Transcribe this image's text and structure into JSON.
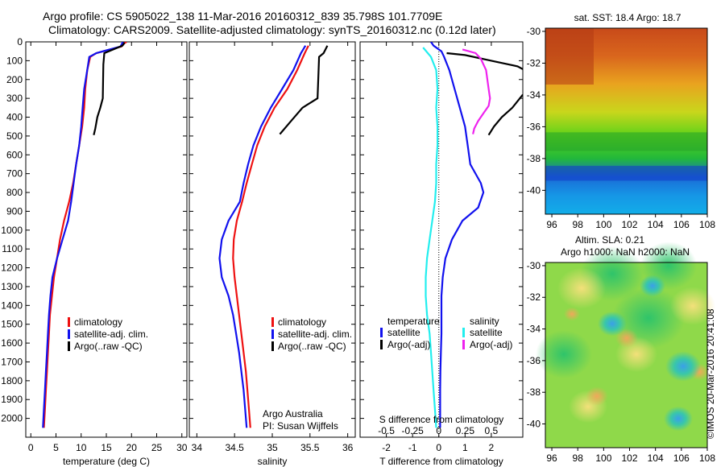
{
  "titles": {
    "line1": "Argo profile: CS 5905022_138 11-Mar-2016 20160312_839 35.798S 101.7709E",
    "line2": "Climatology: CARS2009. Satellite-adjusted climatology: synTS_20160312.nc (0.12d later)"
  },
  "credit": "©IMOS 20-Mar-2016 20:41:08",
  "colors": {
    "climatology": "#ee1111",
    "satellite": "#1111ee",
    "argo": "#000000",
    "s_satellite": "#22eeee",
    "s_argo": "#ee22ee"
  },
  "chart_data": [
    {
      "type": "line",
      "id": "temperature",
      "xlabel": "temperature (deg C)",
      "ylabel": "",
      "xlim": [
        -1,
        31
      ],
      "ylim": [
        2100,
        0
      ],
      "xticks": [
        "0",
        "5",
        "10",
        "15",
        "20",
        "25",
        "30"
      ],
      "yticks": [
        "0",
        "100",
        "200",
        "300",
        "400",
        "500",
        "600",
        "700",
        "800",
        "900",
        "1000",
        "1100",
        "1200",
        "1300",
        "1400",
        "1500",
        "1600",
        "1700",
        "1800",
        "1900",
        "2000"
      ],
      "legend": [
        "climatology",
        "satellite-adj. clim.",
        "Argo(..raw -QC)"
      ],
      "series": [
        {
          "name": "climatology",
          "color": "#ee1111",
          "points": [
            [
              19,
              0
            ],
            [
              18.5,
              10
            ],
            [
              18,
              25
            ],
            [
              13,
              60
            ],
            [
              11.8,
              80
            ],
            [
              11.2,
              150
            ],
            [
              10.8,
              250
            ],
            [
              10.6,
              350
            ],
            [
              10.2,
              450
            ],
            [
              9.6,
              550
            ],
            [
              9,
              650
            ],
            [
              8.4,
              750
            ],
            [
              7.6,
              850
            ],
            [
              6.6,
              950
            ],
            [
              5.8,
              1050
            ],
            [
              5.2,
              1150
            ],
            [
              4.6,
              1250
            ],
            [
              4.2,
              1350
            ],
            [
              3.8,
              1450
            ],
            [
              3.6,
              1550
            ],
            [
              3.4,
              1650
            ],
            [
              3.2,
              1750
            ],
            [
              3,
              1850
            ],
            [
              2.8,
              1950
            ],
            [
              2.6,
              2050
            ]
          ]
        },
        {
          "name": "satellite-adj. clim.",
          "color": "#1111ee",
          "points": [
            [
              18.3,
              0
            ],
            [
              18.1,
              10
            ],
            [
              17.8,
              25
            ],
            [
              13,
              60
            ],
            [
              11.6,
              80
            ],
            [
              11.2,
              150
            ],
            [
              10.6,
              250
            ],
            [
              10.3,
              350
            ],
            [
              10,
              450
            ],
            [
              9.6,
              550
            ],
            [
              9,
              650
            ],
            [
              8.5,
              750
            ],
            [
              8,
              850
            ],
            [
              7.4,
              950
            ],
            [
              6.3,
              1050
            ],
            [
              5.2,
              1150
            ],
            [
              4.3,
              1250
            ],
            [
              3.9,
              1350
            ],
            [
              3.6,
              1450
            ],
            [
              3.4,
              1550
            ],
            [
              3.2,
              1650
            ],
            [
              3,
              1750
            ],
            [
              2.8,
              1850
            ],
            [
              2.6,
              1950
            ],
            [
              2.4,
              2050
            ]
          ]
        },
        {
          "name": "Argo(..raw -QC)",
          "color": "#000000",
          "points": [
            [
              18.6,
              5
            ],
            [
              18.2,
              20
            ],
            [
              14.6,
              60
            ],
            [
              14.4,
              120
            ],
            [
              14.3,
              300
            ],
            [
              13.8,
              350
            ],
            [
              13.2,
              400
            ],
            [
              12.8,
              460
            ],
            [
              12.5,
              495
            ]
          ]
        }
      ]
    },
    {
      "type": "line",
      "id": "salinity",
      "xlabel": "salinity",
      "ylabel": "",
      "xlim": [
        33.9,
        36.1
      ],
      "ylim": [
        2100,
        0
      ],
      "xticks": [
        "34",
        "34.5",
        "35",
        "35.5",
        "36"
      ],
      "legend": [
        "climatology",
        "satellite-adj. clim.",
        "Argo(..raw -QC)"
      ],
      "annotation": [
        "Argo Australia",
        "PI: Susan Wijffels"
      ],
      "series": [
        {
          "name": "climatology",
          "color": "#ee1111",
          "points": [
            [
              35.48,
              20
            ],
            [
              35.43,
              60
            ],
            [
              35.33,
              150
            ],
            [
              35.2,
              250
            ],
            [
              35.03,
              350
            ],
            [
              34.9,
              450
            ],
            [
              34.8,
              550
            ],
            [
              34.73,
              650
            ],
            [
              34.66,
              750
            ],
            [
              34.6,
              850
            ],
            [
              34.53,
              950
            ],
            [
              34.49,
              1050
            ],
            [
              34.48,
              1150
            ],
            [
              34.5,
              1250
            ],
            [
              34.53,
              1350
            ],
            [
              34.56,
              1450
            ],
            [
              34.59,
              1550
            ],
            [
              34.62,
              1650
            ],
            [
              34.65,
              1750
            ],
            [
              34.67,
              1850
            ],
            [
              34.69,
              1950
            ],
            [
              34.71,
              2050
            ]
          ]
        },
        {
          "name": "satellite-adj. clim.",
          "color": "#1111ee",
          "points": [
            [
              35.44,
              20
            ],
            [
              35.38,
              60
            ],
            [
              35.28,
              150
            ],
            [
              35.13,
              250
            ],
            [
              34.98,
              350
            ],
            [
              34.85,
              450
            ],
            [
              34.75,
              550
            ],
            [
              34.68,
              650
            ],
            [
              34.62,
              750
            ],
            [
              34.57,
              850
            ],
            [
              34.42,
              950
            ],
            [
              34.33,
              1050
            ],
            [
              34.3,
              1150
            ],
            [
              34.33,
              1250
            ],
            [
              34.42,
              1350
            ],
            [
              34.48,
              1450
            ],
            [
              34.52,
              1550
            ],
            [
              34.56,
              1650
            ],
            [
              34.59,
              1750
            ],
            [
              34.62,
              1850
            ],
            [
              34.64,
              1950
            ],
            [
              34.66,
              2050
            ]
          ]
        },
        {
          "name": "Argo(..raw -QC)",
          "color": "#000000",
          "points": [
            [
              35.73,
              20
            ],
            [
              35.68,
              60
            ],
            [
              35.62,
              80
            ],
            [
              35.6,
              300
            ],
            [
              35.4,
              350
            ],
            [
              35.25,
              420
            ],
            [
              35.1,
              490
            ]
          ]
        }
      ]
    },
    {
      "type": "line",
      "id": "difference",
      "xlabel": "T difference from climatology",
      "xlabel2": "S difference from climatology",
      "ylabel": "",
      "xlim": [
        -3,
        3.2
      ],
      "ylim": [
        2100,
        0
      ],
      "xticks": [
        "-2",
        "-1",
        "0",
        "1",
        "2"
      ],
      "xticks2": [
        "-0.5",
        "-0.25",
        "0",
        "0.25",
        "0.5"
      ],
      "legend_headers": [
        "temperature",
        "salinity"
      ],
      "legend": [
        "satellite",
        "Argo(-adj)",
        "satellite",
        "Argo(-adj)"
      ],
      "series": [
        {
          "name": "satellite",
          "color": "#1111ee",
          "points": [
            [
              -0.3,
              0
            ],
            [
              -0.2,
              20
            ],
            [
              0.1,
              50
            ],
            [
              0.2,
              80
            ],
            [
              0.4,
              150
            ],
            [
              0.6,
              250
            ],
            [
              0.8,
              350
            ],
            [
              1,
              450
            ],
            [
              1.1,
              550
            ],
            [
              1.2,
              650
            ],
            [
              1.6,
              750
            ],
            [
              1.7,
              800
            ],
            [
              1.5,
              880
            ],
            [
              0.9,
              950
            ],
            [
              0.5,
              1050
            ],
            [
              0.25,
              1150
            ],
            [
              0.15,
              1250
            ],
            [
              0.1,
              1350
            ],
            [
              0.1,
              1450
            ],
            [
              0.1,
              1550
            ],
            [
              0.08,
              1650
            ],
            [
              0.06,
              1750
            ],
            [
              0.05,
              1850
            ],
            [
              0.05,
              1950
            ],
            [
              0.05,
              2050
            ]
          ]
        },
        {
          "name": "Argo(-adj)",
          "color": "#000000",
          "points": [
            [
              0.3,
              60
            ],
            [
              1,
              70
            ],
            [
              2,
              100
            ],
            [
              3,
              130
            ],
            [
              3.2,
              145
            ]
          ]
        },
        {
          "name": "satellite",
          "color": "#22eeee",
          "points": [
            [
              -0.6,
              30
            ],
            [
              -0.3,
              80
            ],
            [
              -0.1,
              150
            ],
            [
              -0.05,
              250
            ],
            [
              -0.1,
              350
            ],
            [
              -0.05,
              450
            ],
            [
              -0.05,
              550
            ],
            [
              -0.1,
              650
            ],
            [
              -0.1,
              750
            ],
            [
              -0.15,
              850
            ],
            [
              -0.25,
              950
            ],
            [
              -0.35,
              1050
            ],
            [
              -0.45,
              1150
            ],
            [
              -0.5,
              1250
            ],
            [
              -0.5,
              1350
            ],
            [
              -0.45,
              1450
            ],
            [
              -0.35,
              1550
            ],
            [
              -0.3,
              1650
            ],
            [
              -0.25,
              1750
            ],
            [
              -0.2,
              1850
            ],
            [
              -0.15,
              1950
            ],
            [
              -0.1,
              2050
            ]
          ]
        },
        {
          "name": "Argo(-adj)",
          "color": "#ee22ee",
          "points": [
            [
              0.9,
              40
            ],
            [
              1.4,
              60
            ],
            [
              1.6,
              90
            ],
            [
              1.8,
              150
            ],
            [
              1.9,
              250
            ],
            [
              1.95,
              300
            ],
            [
              1.9,
              340
            ],
            [
              1.7,
              380
            ],
            [
              1.5,
              420
            ],
            [
              1.35,
              460
            ],
            [
              1.3,
              490
            ]
          ]
        },
        {
          "name": "Argo(-adj)",
          "color": "#000000",
          "points": [
            [
              3.2,
              280
            ],
            [
              2.8,
              350
            ],
            [
              2.4,
              400
            ],
            [
              2.1,
              450
            ],
            [
              1.9,
              495
            ]
          ]
        }
      ]
    },
    {
      "type": "heatmap",
      "id": "sst_map",
      "title": "sat. SST: 18.4 Argo: 18.7",
      "xlim": [
        95.5,
        108
      ],
      "ylim": [
        -41.5,
        -29.8
      ],
      "xticks": [
        "96",
        "98",
        "100",
        "102",
        "104",
        "106",
        "108"
      ],
      "yticks": [
        "-30",
        "-32",
        "-34",
        "-36",
        "-38",
        "-40"
      ]
    },
    {
      "type": "heatmap",
      "id": "sla_map",
      "title": "Altim. SLA: 0.21",
      "subtitle": "Argo h1000: NaN h2000: NaN",
      "xlim": [
        95.5,
        108
      ],
      "ylim": [
        -41.5,
        -29.8
      ],
      "xticks": [
        "96",
        "98",
        "100",
        "102",
        "104",
        "106",
        "108"
      ],
      "yticks": [
        "-30",
        "-32",
        "-34",
        "-36",
        "-38",
        "-40"
      ]
    }
  ]
}
